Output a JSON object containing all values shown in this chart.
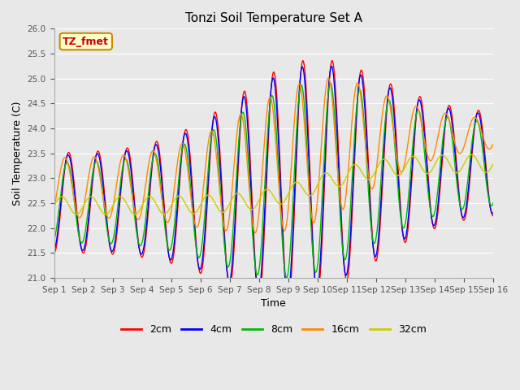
{
  "title": "Tonzi Soil Temperature Set A",
  "xlabel": "Time",
  "ylabel": "Soil Temperature (C)",
  "ylim": [
    21.0,
    26.0
  ],
  "yticks": [
    21.0,
    21.5,
    22.0,
    22.5,
    23.0,
    23.5,
    24.0,
    24.5,
    25.0,
    25.5,
    26.0
  ],
  "colors": {
    "2cm": "#ff0000",
    "4cm": "#0000ff",
    "8cm": "#00bb00",
    "16cm": "#ff8800",
    "32cm": "#cccc00"
  },
  "legend_label": "TZ_fmet",
  "annotation_bg": "#ffffcc",
  "annotation_border": "#cc8800",
  "fig_bg": "#e8e8e8",
  "plot_bg": "#e8e8e8",
  "n_days": 15,
  "ppd": 48
}
